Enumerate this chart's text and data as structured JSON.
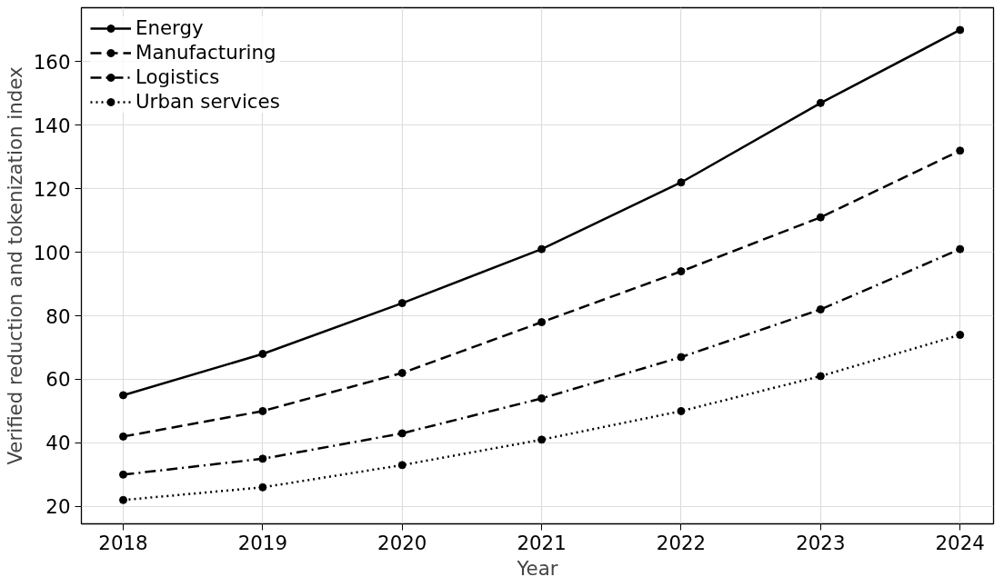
{
  "chart_data": {
    "type": "line",
    "xlabel": "Year",
    "ylabel": "Verified reduction and tokenization index",
    "x": [
      2018,
      2019,
      2020,
      2021,
      2022,
      2023,
      2024
    ],
    "series": [
      {
        "name": "Energy",
        "color": "#000000",
        "line_style": "solid",
        "values": [
          55,
          68,
          84,
          101,
          122,
          147,
          170
        ]
      },
      {
        "name": "Manufacturing",
        "color": "#000000",
        "line_style": "dashed",
        "values": [
          42,
          50,
          62,
          78,
          94,
          111,
          132
        ]
      },
      {
        "name": "Logistics",
        "color": "#000000",
        "line_style": "dashdot",
        "values": [
          30,
          35,
          43,
          54,
          67,
          82,
          101
        ]
      },
      {
        "name": "Urban services",
        "color": "#000000",
        "line_style": "dotted",
        "values": [
          22,
          26,
          33,
          41,
          50,
          61,
          74
        ]
      }
    ],
    "xlim": [
      2017.7,
      2024.24
    ],
    "ylim": [
      14.5,
      177
    ],
    "xticks": [
      2018,
      2019,
      2020,
      2021,
      2022,
      2023,
      2024
    ],
    "yticks": [
      20,
      40,
      60,
      80,
      100,
      120,
      140,
      160
    ],
    "grid": true,
    "legend": "top left",
    "marker": "circle"
  }
}
